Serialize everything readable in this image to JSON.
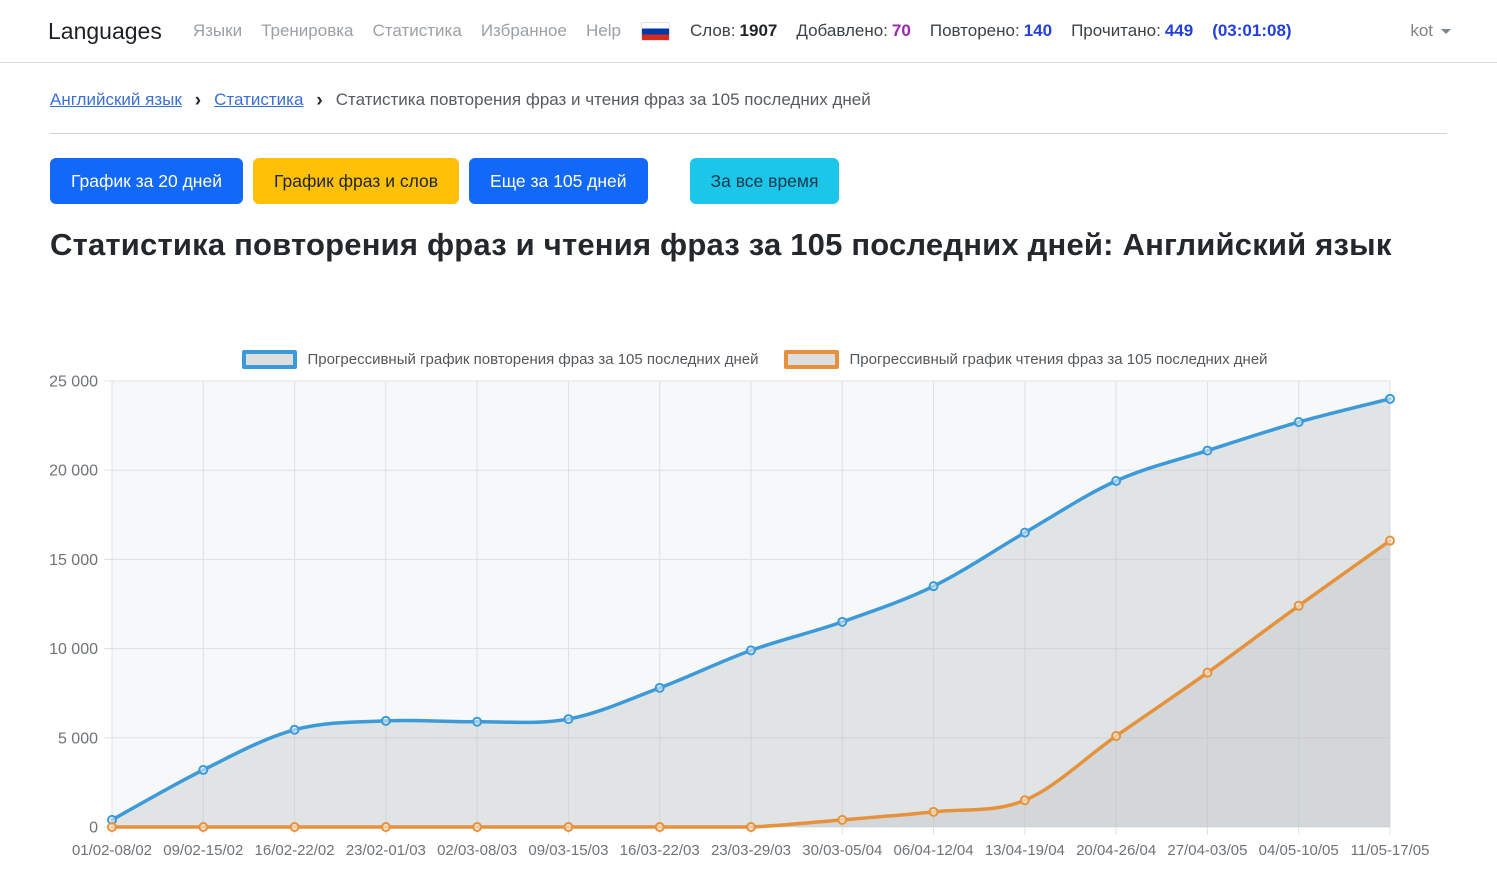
{
  "navbar": {
    "brand": "Languages",
    "links": [
      {
        "label": "Языки"
      },
      {
        "label": "Тренировка"
      },
      {
        "label": "Статистика"
      },
      {
        "label": "Избранное"
      },
      {
        "label": "Help"
      }
    ],
    "flag": "russian-flag",
    "stats": [
      {
        "label": "Слов:",
        "value": "1907",
        "color": "#212529"
      },
      {
        "label": "Добавлено:",
        "value": "70",
        "color": "#9b27af"
      },
      {
        "label": "Повторено:",
        "value": "140",
        "color": "#2440d8"
      },
      {
        "label": "Прочитано:",
        "value": "449",
        "color": "#2440d8"
      }
    ],
    "timer": "(03:01:08)",
    "timer_color": "#2440d8",
    "user": "kot"
  },
  "breadcrumb": {
    "links": [
      {
        "label": "Английский язык"
      },
      {
        "label": "Статистика"
      }
    ],
    "current": "Статистика повторения фраз и чтения фраз за 105 последних дней"
  },
  "toolbar": {
    "buttons": [
      {
        "label": "График за 20 дней",
        "bg": "#1268f8",
        "fg": "#ffffff"
      },
      {
        "label": "График фраз и слов",
        "bg": "#ffc107",
        "fg": "#22262a"
      },
      {
        "label": "Еще за 105 дней",
        "bg": "#1268f8",
        "fg": "#ffffff"
      },
      {
        "label": "За все время",
        "bg": "#1cc6e8",
        "fg": "#17384d"
      }
    ]
  },
  "page_title": "Статистика повторения фраз и чтения фраз за 105 последних дней: Английский язык",
  "chart_data": {
    "type": "line",
    "categories": [
      "01/02-08/02",
      "09/02-15/02",
      "16/02-22/02",
      "23/02-01/03",
      "02/03-08/03",
      "09/03-15/03",
      "16/03-22/03",
      "23/03-29/03",
      "30/03-05/04",
      "06/04-12/04",
      "13/04-19/04",
      "20/04-26/04",
      "27/04-03/05",
      "04/05-10/05",
      "11/05-17/05"
    ],
    "series": [
      {
        "name": "Прогрессивный график повторения фраз за 105 последних дней",
        "color": "#3d9ad9",
        "values": [
          400,
          3200,
          5450,
          5950,
          5900,
          6050,
          7800,
          9900,
          11500,
          13500,
          16500,
          19400,
          21100,
          22700,
          24000
        ]
      },
      {
        "name": "Прогрессивный график чтения фраз за 105 последних дней",
        "color": "#e6923c",
        "values": [
          0,
          0,
          0,
          0,
          0,
          0,
          0,
          0,
          400,
          850,
          1500,
          5100,
          8650,
          12400,
          16050
        ]
      }
    ],
    "ylim": [
      0,
      25000
    ],
    "yticks": [
      0,
      5000,
      10000,
      15000,
      20000,
      25000
    ],
    "ytick_labels": [
      "0",
      "5 000",
      "10 000",
      "15 000",
      "20 000",
      "25 000"
    ],
    "legend_position": "top",
    "grid": true,
    "colors": {
      "grid": "#dde0e3",
      "tick_label": "#6e7377",
      "plot_bg": "#f6f8f9",
      "area_fill": "rgba(190,194,198,0.38)",
      "swatch_bg": "#dcdee0"
    }
  }
}
